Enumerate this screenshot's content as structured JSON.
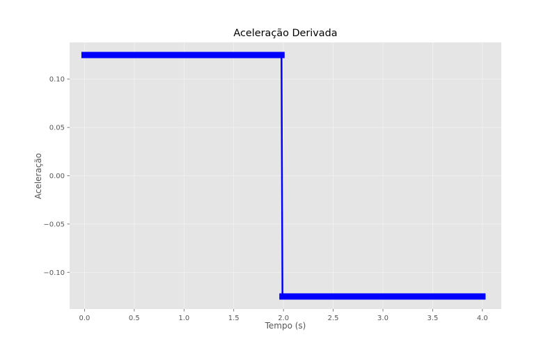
{
  "chart_data": {
    "type": "line",
    "title": "Aceleração Derivada",
    "xlabel": "Tempo (s)",
    "ylabel": "Aceleração",
    "xlim": [
      -0.15,
      4.19
    ],
    "ylim": [
      -0.138,
      0.138
    ],
    "xticks": [
      0.0,
      0.5,
      1.0,
      1.5,
      2.0,
      2.5,
      3.0,
      3.5,
      4.0
    ],
    "xtick_labels": [
      "0.0",
      "0.5",
      "1.0",
      "1.5",
      "2.0",
      "2.5",
      "3.0",
      "3.5",
      "4.0"
    ],
    "yticks": [
      0.1,
      0.05,
      0.0,
      -0.05,
      -0.1
    ],
    "ytick_labels": [
      "0.10",
      "0.05",
      "0.00",
      "−0.05",
      "−0.10"
    ],
    "grid": true,
    "background": "#e5e5e5",
    "series": [
      {
        "color": "#0000ff",
        "marker": "s",
        "x": [
          0.0,
          1.98,
          1.99,
          4.0
        ],
        "y": [
          0.125,
          0.125,
          -0.125,
          -0.125
        ]
      }
    ]
  }
}
